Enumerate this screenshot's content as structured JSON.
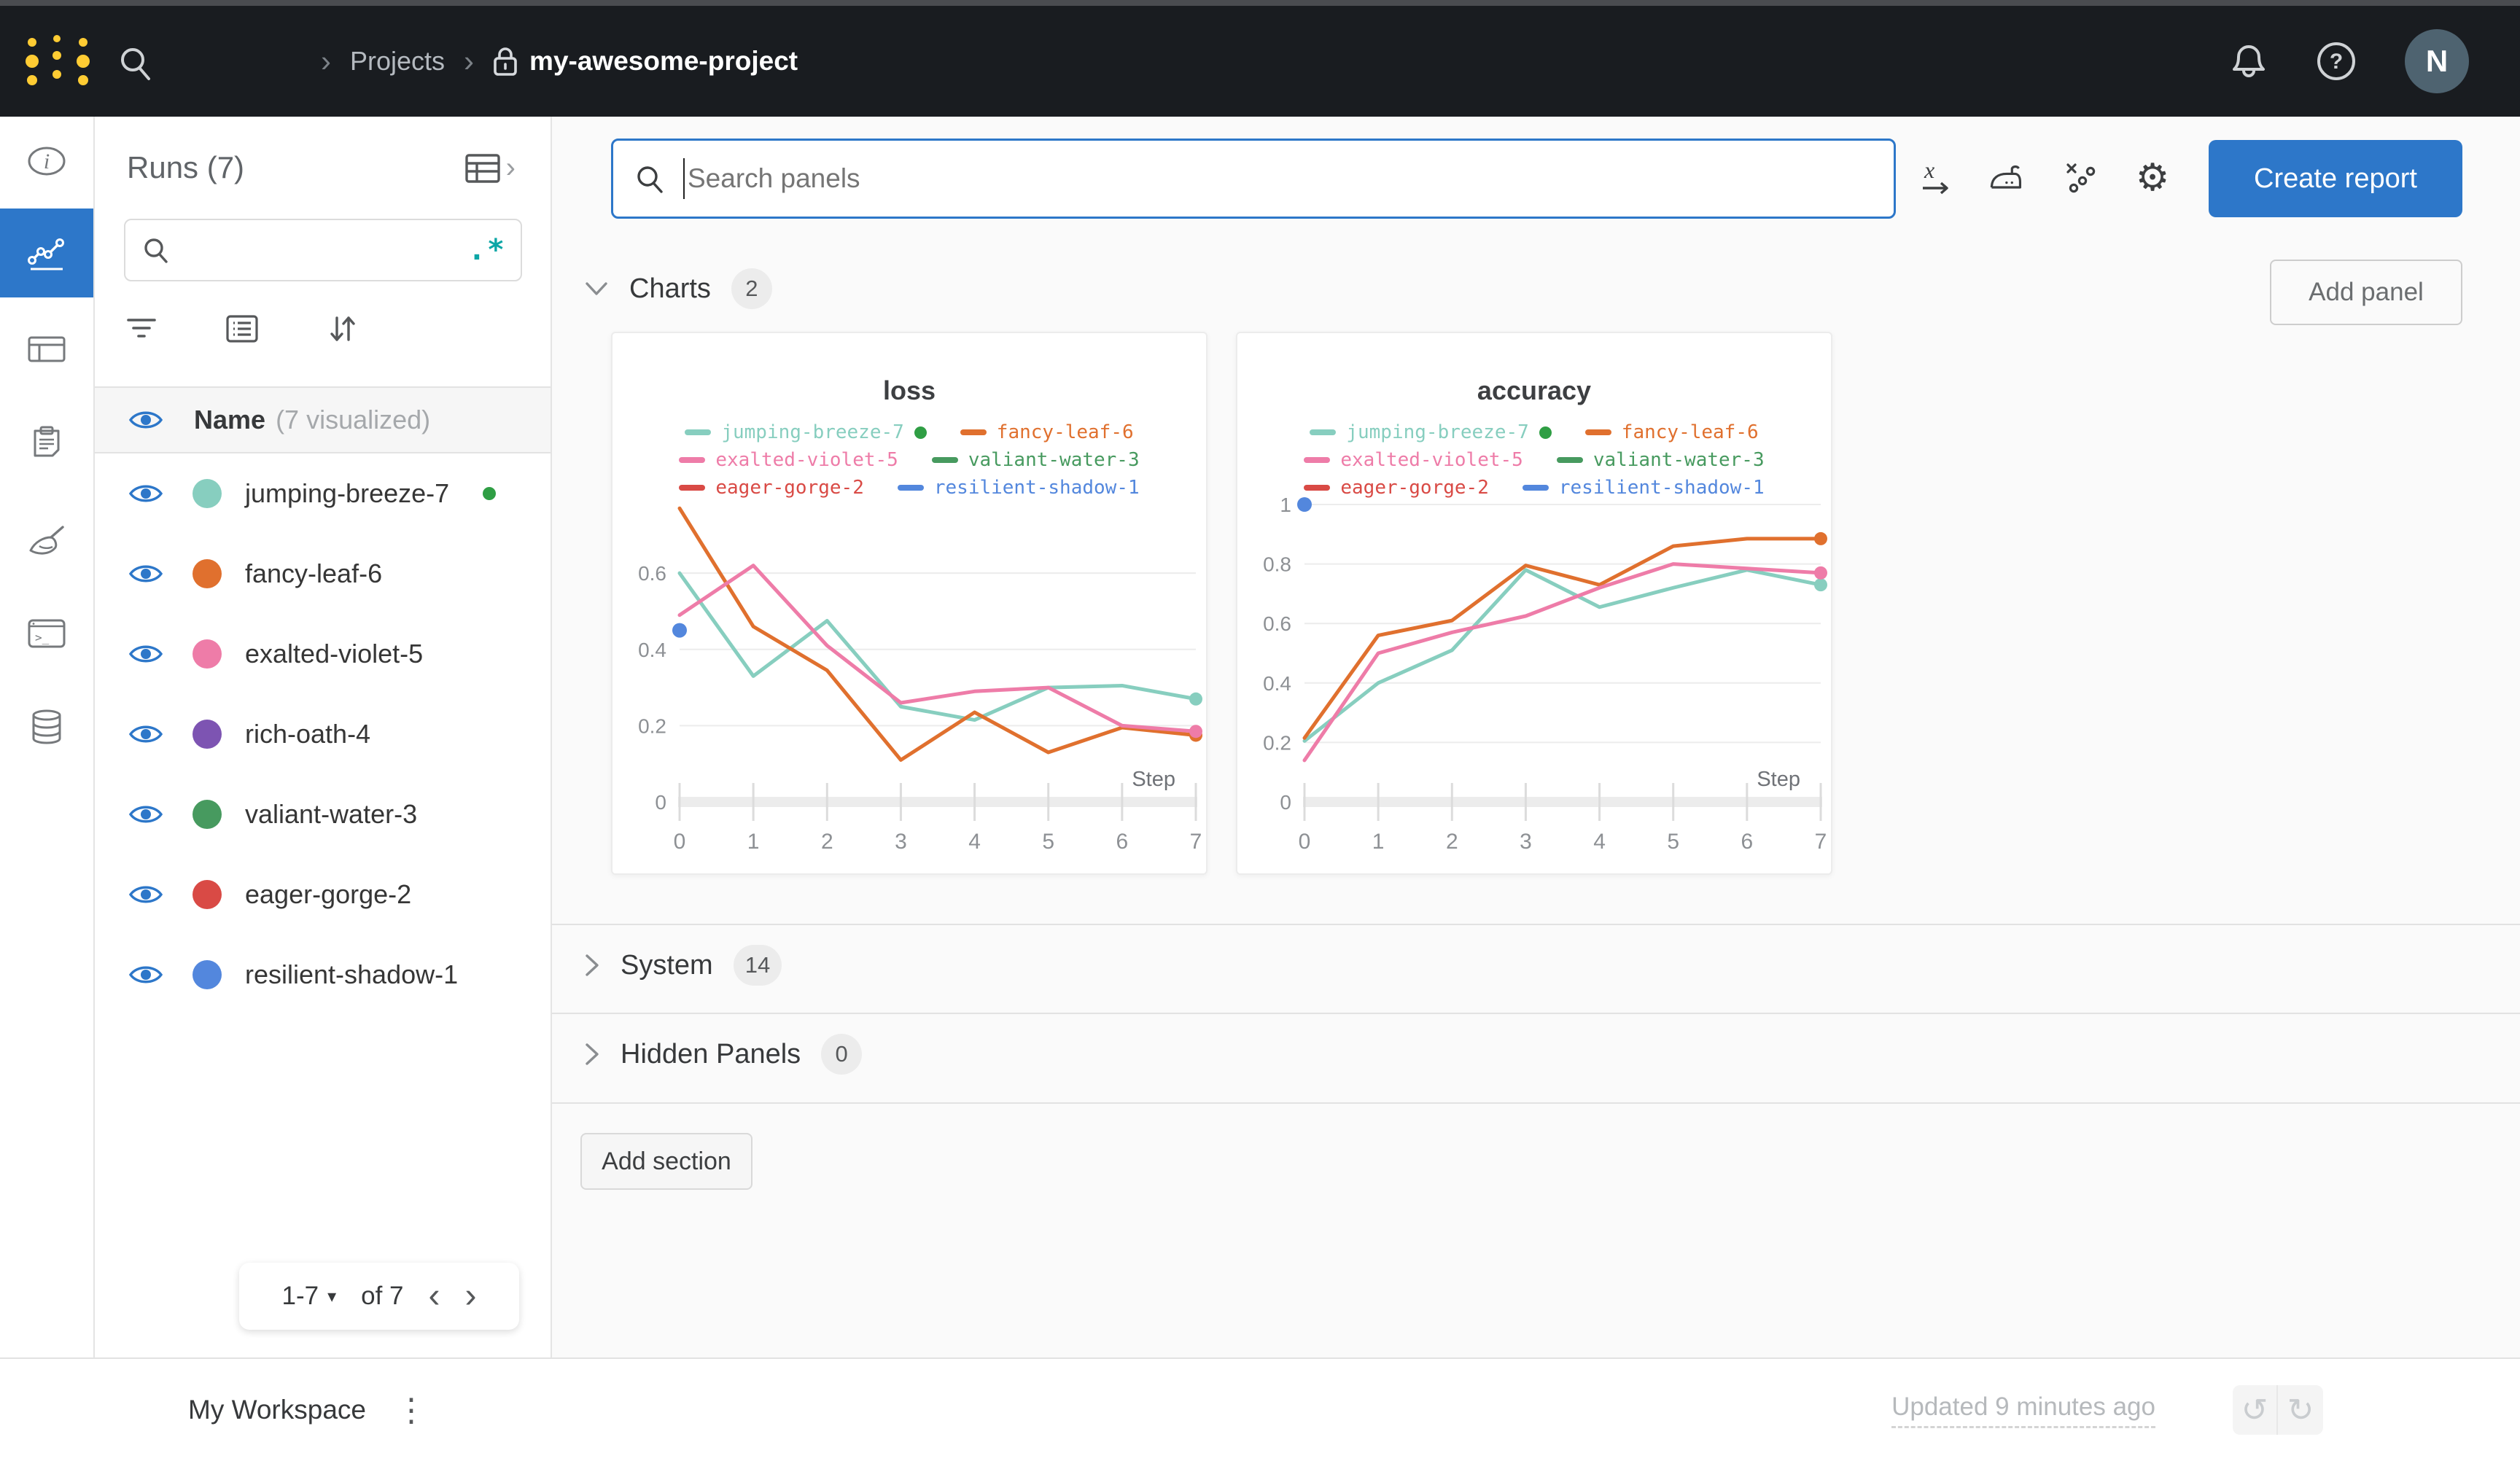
{
  "topbar": {
    "breadcrumb": {
      "projects": "Projects",
      "project_name": "my-awesome-project"
    },
    "avatar_initial": "N"
  },
  "glyphs": {
    "breadcrumb_sep": "›",
    "expand_chevron": "›",
    "gear": "⚙",
    "kebab": "⋮",
    "undo": "↺",
    "redo": "↻",
    "caret_down": "▾",
    "chev_left": "‹",
    "chev_right": "›",
    "regex": ".*",
    "help": "?"
  },
  "colors": {
    "accent_blue": "#2d77c9",
    "topbar_bg": "#191c20",
    "running_green": "#2f9e44",
    "main_bg": "#fafafa",
    "logo_yellow": "#ffcc33"
  },
  "nav_rail": {
    "items": [
      {
        "icon": "info-icon",
        "active": false
      },
      {
        "icon": "line-chart-icon",
        "active": true
      },
      {
        "icon": "table-icon",
        "active": false
      },
      {
        "icon": "clipboard-icon",
        "active": false
      },
      {
        "icon": "broom-icon",
        "active": false
      },
      {
        "icon": "terminal-icon",
        "active": false
      },
      {
        "icon": "database-icon",
        "active": false
      }
    ]
  },
  "runs_sidebar": {
    "title": "Runs (7)",
    "search_placeholder": "",
    "name_header": "Name",
    "visualized_note": "(7 visualized)",
    "runs": [
      {
        "name": "jumping-breeze-7",
        "color": "#87cebf",
        "running": true
      },
      {
        "name": "fancy-leaf-6",
        "color": "#e0702e",
        "running": false
      },
      {
        "name": "exalted-violet-5",
        "color": "#ee7ca8",
        "running": false
      },
      {
        "name": "rich-oath-4",
        "color": "#7d54b2",
        "running": false
      },
      {
        "name": "valiant-water-3",
        "color": "#479a5f",
        "running": false
      },
      {
        "name": "eager-gorge-2",
        "color": "#d94a45",
        "running": false
      },
      {
        "name": "resilient-shadow-1",
        "color": "#5387dd",
        "running": false
      }
    ],
    "pagination": {
      "range": "1-7",
      "of": "of 7"
    }
  },
  "main": {
    "search": {
      "placeholder": "Search panels"
    },
    "create_report_label": "Create report",
    "add_panel_label": "Add panel",
    "sections": [
      {
        "label": "Charts",
        "count": "2"
      },
      {
        "label": "System",
        "count": "14"
      },
      {
        "label": "Hidden Panels",
        "count": "0"
      }
    ],
    "add_section_label": "Add section"
  },
  "footer": {
    "workspace_label": "My Workspace",
    "updated_text": "Updated 9 minutes ago"
  },
  "chart_data": [
    {
      "type": "line",
      "title": "loss",
      "xlabel": "Step",
      "x": [
        0,
        1,
        2,
        3,
        4,
        5,
        6,
        7
      ],
      "ylim": [
        0,
        0.78
      ],
      "yticks": [
        0,
        0.2,
        0.4,
        0.6
      ],
      "grid": true,
      "legend_position": "top",
      "series": [
        {
          "name": "jumping-breeze-7",
          "color": "#87cebf",
          "running": true,
          "end_dot": true,
          "values": [
            0.6,
            0.33,
            0.475,
            0.25,
            0.215,
            0.3,
            0.305,
            0.27
          ]
        },
        {
          "name": "fancy-leaf-6",
          "color": "#e0702e",
          "end_dot": true,
          "values": [
            0.77,
            0.46,
            0.345,
            0.11,
            0.235,
            0.13,
            0.195,
            0.175
          ]
        },
        {
          "name": "exalted-violet-5",
          "color": "#ee7ca8",
          "end_dot": true,
          "values": [
            0.49,
            0.62,
            0.41,
            0.26,
            0.29,
            0.3,
            0.2,
            0.185
          ]
        },
        {
          "name": "valiant-water-3",
          "color": "#479a5f",
          "values": []
        },
        {
          "name": "eager-gorge-2",
          "color": "#d94a45",
          "values": []
        },
        {
          "name": "resilient-shadow-1",
          "color": "#5387dd",
          "point_only": true,
          "values": [
            0.45
          ]
        }
      ]
    },
    {
      "type": "line",
      "title": "accuracy",
      "xlabel": "Step",
      "x": [
        0,
        1,
        2,
        3,
        4,
        5,
        6,
        7
      ],
      "ylim": [
        0,
        1.0
      ],
      "yticks": [
        0,
        0.2,
        0.4,
        0.6,
        0.8,
        1
      ],
      "grid": true,
      "legend_position": "top",
      "series": [
        {
          "name": "jumping-breeze-7",
          "color": "#87cebf",
          "running": true,
          "end_dot": true,
          "values": [
            0.205,
            0.4,
            0.51,
            0.78,
            0.655,
            0.72,
            0.78,
            0.73
          ]
        },
        {
          "name": "fancy-leaf-6",
          "color": "#e0702e",
          "end_dot": true,
          "values": [
            0.215,
            0.56,
            0.61,
            0.795,
            0.73,
            0.86,
            0.885,
            0.885
          ]
        },
        {
          "name": "exalted-violet-5",
          "color": "#ee7ca8",
          "end_dot": true,
          "values": [
            0.14,
            0.5,
            0.57,
            0.625,
            0.72,
            0.8,
            0.785,
            0.77
          ]
        },
        {
          "name": "valiant-water-3",
          "color": "#479a5f",
          "values": []
        },
        {
          "name": "eager-gorge-2",
          "color": "#d94a45",
          "values": []
        },
        {
          "name": "resilient-shadow-1",
          "color": "#5387dd",
          "point_only": true,
          "values": [
            1.0
          ]
        }
      ]
    }
  ]
}
